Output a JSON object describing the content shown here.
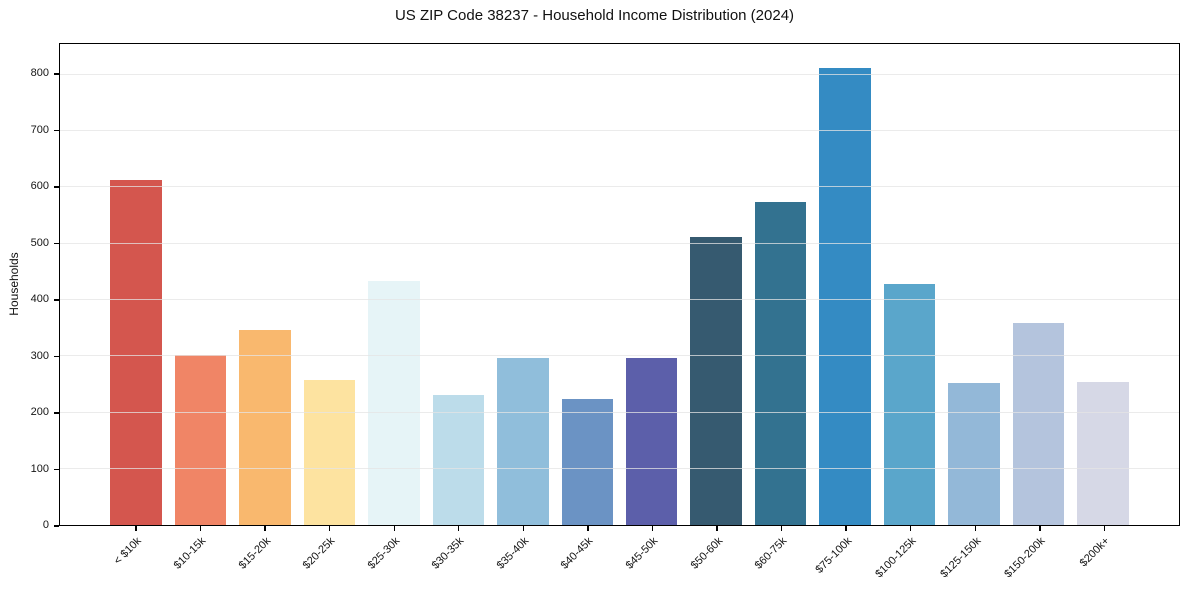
{
  "title": "US ZIP Code 38237 - Household Income Distribution (2024)",
  "chart_data": {
    "type": "bar",
    "title": "US ZIP Code 38237 - Household Income Distribution (2024)",
    "xlabel": "",
    "ylabel": "Households",
    "ylim": [
      0,
      855
    ],
    "yticks": [
      0,
      100,
      200,
      300,
      400,
      500,
      600,
      700,
      800
    ],
    "grid": "horizontal gridlines every 100, light gray, drawn above bars",
    "legend": "none",
    "background_color": "#ffffff",
    "frame_color": "#000000",
    "grid_color": "#e4e4e4",
    "categories": [
      "< $10k",
      "$10-15k",
      "$15-20k",
      "$20-25k",
      "$25-30k",
      "$30-35k",
      "$35-40k",
      "$40-45k",
      "$45-50k",
      "$50-60k",
      "$60-75k",
      "$75-100k",
      "$100-125k",
      "$125-150k",
      "$150-200k",
      "$200k+"
    ],
    "values": [
      613,
      303,
      346,
      257,
      434,
      231,
      296,
      224,
      296,
      512,
      574,
      812,
      428,
      252,
      359,
      255
    ],
    "bar_colors": [
      "#d4564e",
      "#f08566",
      "#f9b86e",
      "#fde3a0",
      "#e6f4f7",
      "#bcdcea",
      "#90bedb",
      "#6b93c4",
      "#5c5faa",
      "#365a70",
      "#337290",
      "#348bc3",
      "#5aa6cb",
      "#93b8d8",
      "#b4c4dd",
      "#d6d8e6"
    ],
    "x_tick_rotation_deg": 45
  }
}
